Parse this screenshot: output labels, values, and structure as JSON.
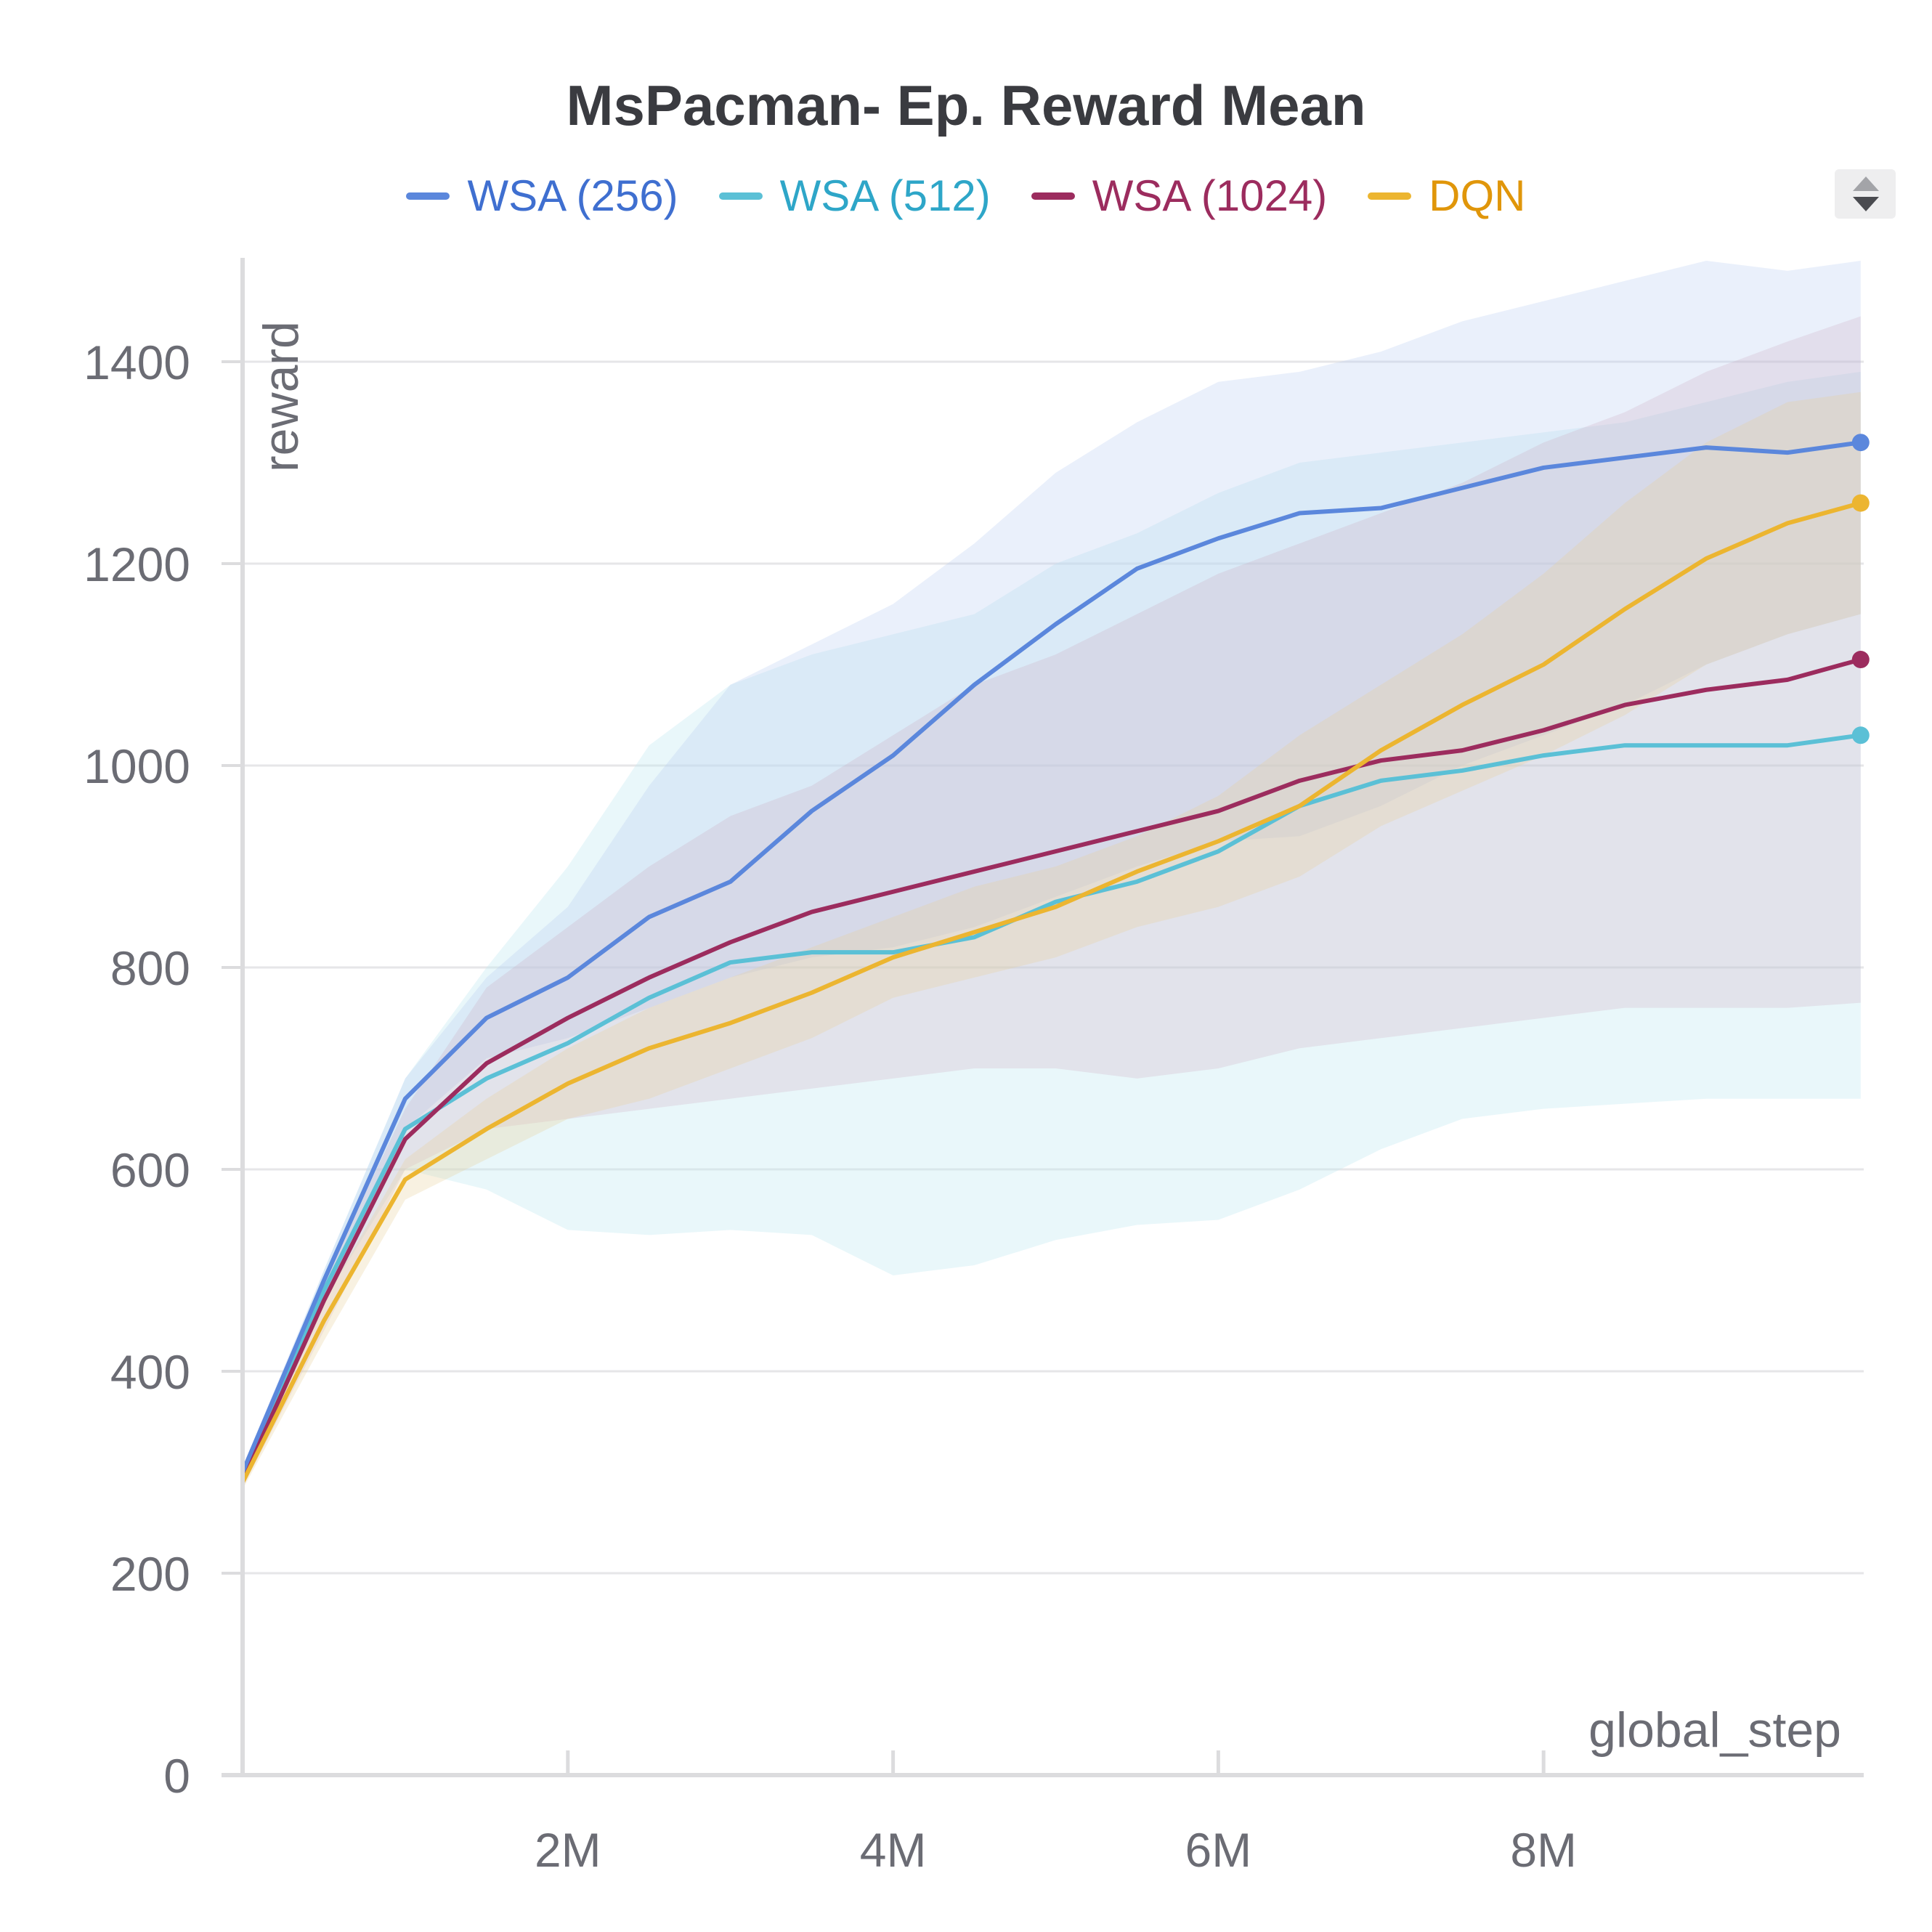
{
  "chart_data": {
    "type": "line",
    "title": "MsPacman- Ep. Reward Mean",
    "xlabel": "global_step",
    "ylabel": "reward",
    "xlim": [
      0,
      10000000
    ],
    "ylim": [
      0,
      1500
    ],
    "x_ticks": [
      2000000,
      4000000,
      6000000,
      8000000
    ],
    "x_tick_labels": [
      "2M",
      "4M",
      "6M",
      "8M"
    ],
    "y_ticks": [
      0,
      200,
      400,
      600,
      800,
      1000,
      1200,
      1400
    ],
    "y_tick_labels": [
      "0",
      "200",
      "400",
      "600",
      "800",
      "1000",
      "1200",
      "1400"
    ],
    "grid": true,
    "legend_position": "top-center",
    "x": [
      0,
      500000,
      1000000,
      1500000,
      2000000,
      2500000,
      3000000,
      3500000,
      4000000,
      4500000,
      5000000,
      5500000,
      6000000,
      6500000,
      7000000,
      7500000,
      8000000,
      8500000,
      9000000,
      9500000,
      9950000
    ],
    "series": [
      {
        "name": "WSA (256)",
        "color": "#5b87dc",
        "values": [
          300,
          490,
          670,
          750,
          790,
          850,
          885,
          955,
          1010,
          1080,
          1140,
          1195,
          1225,
          1250,
          1255,
          1275,
          1295,
          1305,
          1315,
          1310,
          1320
        ],
        "lower": [
          295,
          470,
          640,
          710,
          730,
          760,
          790,
          810,
          820,
          840,
          870,
          900,
          925,
          930,
          960,
          1000,
          1030,
          1060,
          1100,
          1130,
          1150
        ],
        "upper": [
          305,
          500,
          690,
          790,
          860,
          980,
          1080,
          1120,
          1160,
          1220,
          1290,
          1340,
          1380,
          1390,
          1410,
          1440,
          1460,
          1480,
          1500,
          1490,
          1500
        ]
      },
      {
        "name": "WSA (512)",
        "color": "#5bc0d6",
        "values": [
          295,
          480,
          640,
          690,
          725,
          770,
          805,
          815,
          815,
          830,
          865,
          885,
          915,
          960,
          985,
          995,
          1010,
          1020,
          1020,
          1020,
          1030
        ]
      },
      {
        "name": "WSA (1024)",
        "color": "#9c2c5e",
        "values": [
          292,
          470,
          630,
          705,
          750,
          790,
          825,
          855,
          875,
          895,
          915,
          935,
          955,
          985,
          1005,
          1015,
          1035,
          1060,
          1075,
          1085,
          1105
        ],
        "lower": [
          285,
          440,
          600,
          640,
          650,
          660,
          670,
          680,
          690,
          700,
          700,
          690,
          700,
          720,
          730,
          740,
          750,
          760,
          760,
          760,
          765
        ],
        "upper": [
          300,
          490,
          660,
          780,
          840,
          900,
          950,
          980,
          1030,
          1080,
          1110,
          1150,
          1190,
          1220,
          1250,
          1280,
          1320,
          1350,
          1390,
          1420,
          1445
        ]
      },
      {
        "name": "DQN",
        "color": "#ecb530",
        "values": [
          290,
          450,
          590,
          640,
          685,
          720,
          745,
          775,
          810,
          835,
          860,
          895,
          925,
          960,
          1015,
          1060,
          1100,
          1155,
          1205,
          1240,
          1260
        ],
        "lower": [
          283,
          430,
          570,
          610,
          650,
          670,
          700,
          730,
          770,
          790,
          810,
          840,
          860,
          890,
          940,
          975,
          1010,
          1050,
          1100,
          1130,
          1150
        ],
        "upper": [
          297,
          470,
          610,
          670,
          720,
          760,
          790,
          820,
          850,
          880,
          900,
          930,
          970,
          1030,
          1080,
          1130,
          1190,
          1260,
          1320,
          1360,
          1370
        ]
      }
    ],
    "wsa512_band": {
      "lower": [
        290,
        470,
        600,
        580,
        540,
        535,
        540,
        535,
        495,
        505,
        530,
        545,
        550,
        580,
        620,
        650,
        660,
        665,
        670,
        670,
        670
      ],
      "upper": [
        300,
        500,
        690,
        800,
        900,
        1020,
        1080,
        1110,
        1130,
        1150,
        1200,
        1230,
        1270,
        1300,
        1310,
        1320,
        1330,
        1340,
        1360,
        1380,
        1390
      ]
    }
  },
  "legend": {
    "items": [
      {
        "label": "WSA (256)",
        "color": "#5b87dc",
        "text_color": "#3f6fd0"
      },
      {
        "label": "WSA (512)",
        "color": "#5bc0d6",
        "text_color": "#2ea6c8"
      },
      {
        "label": "WSA (1024)",
        "color": "#9c2c5e",
        "text_color": "#9c2c5e"
      },
      {
        "label": "DQN",
        "color": "#ecb530",
        "text_color": "#e0960a"
      }
    ]
  }
}
